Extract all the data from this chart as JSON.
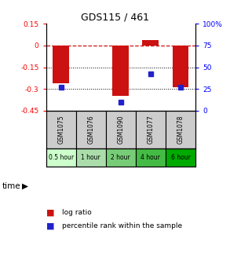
{
  "title": "GDS115 / 461",
  "samples": [
    "GSM1075",
    "GSM1076",
    "GSM1090",
    "GSM1077",
    "GSM1078"
  ],
  "time_labels": [
    "0.5 hour",
    "1 hour",
    "2 hour",
    "4 hour",
    "6 hour"
  ],
  "log_ratios": [
    -0.26,
    null,
    -0.35,
    0.035,
    -0.29
  ],
  "percentile_ranks": [
    27,
    null,
    10,
    42,
    27
  ],
  "ylim_left": [
    -0.45,
    0.15
  ],
  "ylim_right": [
    0,
    100
  ],
  "bar_color": "#cc1111",
  "dot_color": "#2222cc",
  "bar_width": 0.55,
  "hline_0_color": "#cc1111",
  "hline_black_color": "#000000",
  "legend_log_ratio": "log ratio",
  "legend_percentile": "percentile rank within the sample",
  "sample_bg_color": "#cccccc",
  "time_colors": [
    "#ccffcc",
    "#aaddaa",
    "#77cc77",
    "#44bb44",
    "#00aa00"
  ],
  "left_yticks": [
    0.15,
    0.0,
    -0.15,
    -0.3,
    -0.45
  ],
  "left_yticklabels": [
    "0.15",
    "0",
    "-0.15",
    "-0.3",
    "-0.45"
  ],
  "right_yticks": [
    0,
    25,
    50,
    75,
    100
  ],
  "right_yticklabels": [
    "0",
    "25",
    "50",
    "75",
    "100%"
  ]
}
